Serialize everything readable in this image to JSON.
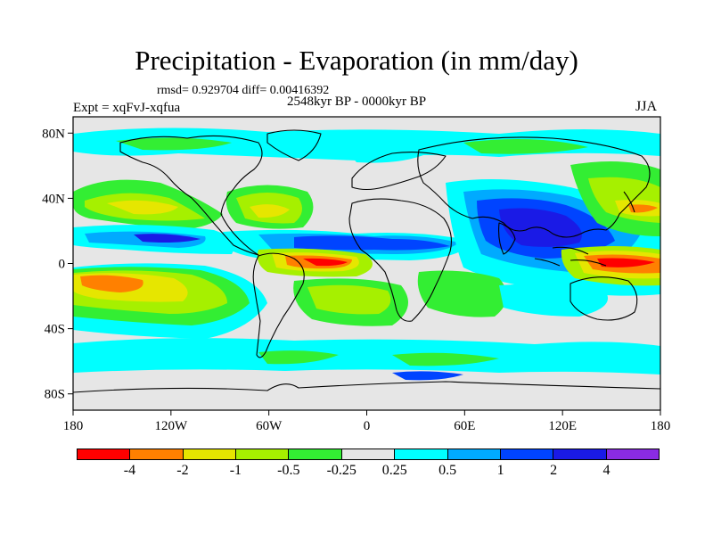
{
  "header": {
    "title": "Precipitation - Evaporation (in mm/day)",
    "stats": "rmsd= 0.929704 diff= 0.00416392",
    "period": "2548kyr BP - 0000kyr BP",
    "experiment": "Expt = xqFvJ-xqfua",
    "season": "JJA"
  },
  "map": {
    "projection": "cylindrical-equidistant",
    "lon_range": [
      -180,
      180
    ],
    "lat_range": [
      -90,
      90
    ],
    "lon_ticks": [
      "180",
      "120W",
      "60W",
      "0",
      "60E",
      "120E",
      "180"
    ],
    "lat_ticks": [
      "80N",
      "40N",
      "0",
      "40S",
      "80S"
    ],
    "background_color": "#e6e6e6"
  },
  "colorbar": {
    "labels": [
      "-4",
      "-2",
      "-1",
      "-0.5",
      "-0.25",
      "0.25",
      "0.5",
      "1",
      "2",
      "4"
    ],
    "colors": [
      "#ff0000",
      "#ff8000",
      "#e6e600",
      "#a6f000",
      "#33ee33",
      "#e6e6e6",
      "#00ffff",
      "#00aaff",
      "#0044ff",
      "#1a1ae6",
      "#8a2be2"
    ]
  }
}
